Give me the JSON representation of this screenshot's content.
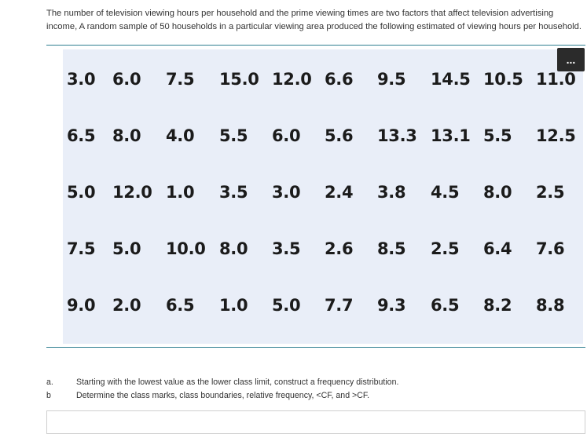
{
  "problem": {
    "intro_text": "The number of television viewing hours per household and the prime viewing times are two factors that affect television advertising income, A random sample of 50 households in a particular viewing area produced the following estimated of viewing hours per household.",
    "more_label": "..."
  },
  "data_table": {
    "rows": [
      [
        "3.0",
        "6.0",
        "7.5",
        "15.0",
        "12.0",
        "6.6",
        "9.5",
        "14.5",
        "10.5",
        "11.0"
      ],
      [
        "6.5",
        "8.0",
        "4.0",
        "5.5",
        "6.0",
        "5.6",
        "13.3",
        "13.1",
        "5.5",
        "12.5"
      ],
      [
        "5.0",
        "12.0",
        "1.0",
        "3.5",
        "3.0",
        "2.4",
        "3.8",
        "4.5",
        "8.0",
        "2.5"
      ],
      [
        "7.5",
        "5.0",
        "10.0",
        "8.0",
        "3.5",
        "2.6",
        "8.5",
        "2.5",
        "6.4",
        "7.6"
      ],
      [
        "9.0",
        "2.0",
        "6.5",
        "1.0",
        "5.0",
        "7.7",
        "9.3",
        "6.5",
        "8.2",
        "8.8"
      ]
    ]
  },
  "questions": [
    {
      "label": "a.",
      "text": "Starting with the lowest value as the lower class limit, construct a frequency distribution."
    },
    {
      "label": "b",
      "text": "Determine the class marks, class boundaries, relative frequency, <CF, and >CF."
    }
  ]
}
